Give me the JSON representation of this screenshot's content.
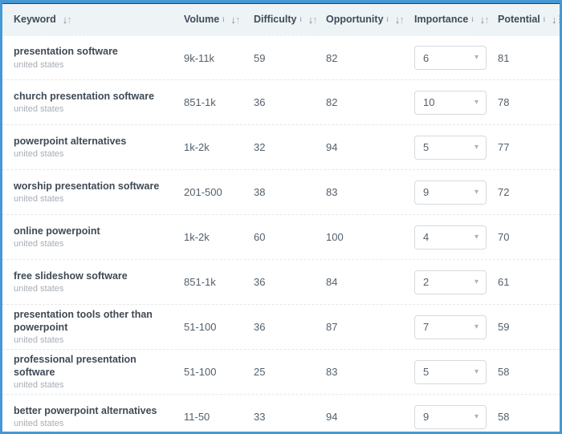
{
  "colors": {
    "frame_border": "#4598d3",
    "header_bg": "#eef3f6",
    "header_text": "#3e4c59",
    "keyword_text": "#3f4a55",
    "locale_text": "#a6adb4",
    "value_text": "#525f6b",
    "dropdown_border": "#d4dade",
    "row_separator": "#e4e7e9"
  },
  "icons": {
    "info": "i",
    "sort_down": "↓",
    "sort_up": "↑",
    "caret": "▾"
  },
  "table": {
    "columns": [
      {
        "label": "Keyword",
        "has_info": false,
        "sort": "both"
      },
      {
        "label": "Volume",
        "has_info": true,
        "sort": "both"
      },
      {
        "label": "Difficulty",
        "has_info": true,
        "sort": "both"
      },
      {
        "label": "Opportunity",
        "has_info": true,
        "sort": "both"
      },
      {
        "label": "Importance",
        "has_info": true,
        "sort": "both"
      },
      {
        "label": "Potential",
        "has_info": true,
        "sort": "desc-active"
      }
    ],
    "rows": [
      {
        "keyword": "presentation software",
        "locale": "united states",
        "volume": "9k-11k",
        "difficulty": "59",
        "opportunity": "82",
        "importance": "6",
        "potential": "81"
      },
      {
        "keyword": "church presentation software",
        "locale": "united states",
        "volume": "851-1k",
        "difficulty": "36",
        "opportunity": "82",
        "importance": "10",
        "potential": "78"
      },
      {
        "keyword": "powerpoint alternatives",
        "locale": "united states",
        "volume": "1k-2k",
        "difficulty": "32",
        "opportunity": "94",
        "importance": "5",
        "potential": "77"
      },
      {
        "keyword": "worship presentation software",
        "locale": "united states",
        "volume": "201-500",
        "difficulty": "38",
        "opportunity": "83",
        "importance": "9",
        "potential": "72"
      },
      {
        "keyword": "online powerpoint",
        "locale": "united states",
        "volume": "1k-2k",
        "difficulty": "60",
        "opportunity": "100",
        "importance": "4",
        "potential": "70"
      },
      {
        "keyword": "free slideshow software",
        "locale": "united states",
        "volume": "851-1k",
        "difficulty": "36",
        "opportunity": "84",
        "importance": "2",
        "potential": "61"
      },
      {
        "keyword": "presentation tools other than powerpoint",
        "locale": "united states",
        "volume": "51-100",
        "difficulty": "36",
        "opportunity": "87",
        "importance": "7",
        "potential": "59"
      },
      {
        "keyword": "professional presentation software",
        "locale": "united states",
        "volume": "51-100",
        "difficulty": "25",
        "opportunity": "83",
        "importance": "5",
        "potential": "58"
      },
      {
        "keyword": "better powerpoint alternatives",
        "locale": "united states",
        "volume": "11-50",
        "difficulty": "33",
        "opportunity": "94",
        "importance": "9",
        "potential": "58"
      }
    ]
  }
}
